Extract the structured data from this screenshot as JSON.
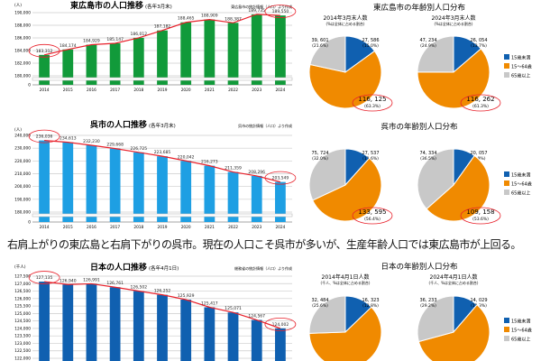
{
  "caption": "右肩上がりの東広島と右肩下がりの呉市。現在の人口こそ呉市が多いが、生産年齢人口では東広島市が上回る。",
  "colors": {
    "green": "#119a3a",
    "blue_bar": "#1e9fe3",
    "navy_bar": "#1060b0",
    "line": "#e8202a",
    "pie_blue": "#1060b0",
    "pie_orange": "#f08a00",
    "pie_gray": "#c8c8c8",
    "highlight": "#e8202a"
  },
  "legend": [
    "15歳未満",
    "15～64歳",
    "65歳以上"
  ],
  "chart_data": [
    {
      "type": "bar",
      "title": "東広島市の人口推移",
      "subtitle": "(各年3月末)",
      "source": "東広島市の統計情報（人口）より作成",
      "unit": "(人)",
      "categories": [
        "2014",
        "2015",
        "2016",
        "2017",
        "2018",
        "2019",
        "2020",
        "2021",
        "2022",
        "2023",
        "2024"
      ],
      "values": [
        183312,
        184174,
        184929,
        185147,
        186012,
        187182,
        188465,
        188909,
        188387,
        189735,
        189550
      ],
      "labels": [
        "183,312",
        "184,174",
        "184,929",
        "185,147",
        "186,012",
        "187,182",
        "188,465",
        "188,909",
        "188,387",
        "189,735",
        "189,550"
      ],
      "ylim": [
        180000,
        190000
      ],
      "yticks": [
        "190,000",
        "188,000",
        "186,000",
        "184,000",
        "182,000",
        "180,000"
      ],
      "ytick_values": [
        190000,
        188000,
        186000,
        184000,
        182000,
        180000
      ],
      "zero_label": "0",
      "axis_break": true,
      "highlighted": [
        0,
        10
      ]
    },
    {
      "type": "bar",
      "title": "呉市の人口推移",
      "subtitle": "(各年3月末)",
      "source": "呉市の統計情報（人口）より作成",
      "unit": "(人)",
      "categories": [
        "2014",
        "2015",
        "2016",
        "2017",
        "2018",
        "2019",
        "2020",
        "2021",
        "2022",
        "2023",
        "2024"
      ],
      "values": [
        236036,
        234613,
        232230,
        229668,
        226725,
        223685,
        220042,
        216273,
        211359,
        208296,
        203549
      ],
      "labels": [
        "236,036",
        "234,613",
        "232,230",
        "229,668",
        "226,725",
        "223,685",
        "220,042",
        "216,273",
        "211,359",
        "208,296",
        "203,549"
      ],
      "ylim": [
        180000,
        240000
      ],
      "yticks": [
        "240,000",
        "230,000",
        "220,000",
        "210,000",
        "200,000",
        "190,000",
        "180,000"
      ],
      "ytick_values": [
        240000,
        230000,
        220000,
        210000,
        200000,
        190000,
        180000
      ],
      "zero_label": "0",
      "axis_break": true,
      "highlighted": [
        0,
        10
      ]
    },
    {
      "type": "bar",
      "title": "日本の人口推移",
      "subtitle": "(各年4月1日)",
      "source": "総務省の統計情報（人口）より作成",
      "unit": "(千人)",
      "values": [
        127135,
        126940,
        126991,
        126761,
        126502,
        126252,
        125929,
        125417,
        125071,
        124567,
        124002
      ],
      "labels": [
        "127,135",
        "126,940",
        "126,991",
        "126,761",
        "126,502",
        "126,252",
        "125,929",
        "125,417",
        "125,071",
        "124,567",
        "124,002"
      ],
      "ylim": [
        122000,
        127500
      ],
      "yticks": [
        "127,500",
        "127,000",
        "126,500",
        "126,000",
        "125,500",
        "125,000",
        "124,500",
        "124,000",
        "123,500",
        "123,000",
        "122,500",
        "122,000"
      ],
      "ytick_values": [
        127500,
        127000,
        126500,
        126000,
        125500,
        125000,
        124500,
        124000,
        123500,
        123000,
        122500,
        122000
      ],
      "highlighted": [
        0,
        10
      ]
    },
    {
      "type": "pie",
      "group_title": "東広島市の年齢別人口分布",
      "title": "2014年3月末人数",
      "note": "(%は全体に占める割合)",
      "slices": [
        {
          "value": 27586,
          "label": "27, 586",
          "pct": "(15.0%)"
        },
        {
          "value": 116125,
          "label": "116, 125",
          "pct": "(63.3%)"
        },
        {
          "value": 39601,
          "label": "39, 601",
          "pct": "(21.6%)"
        }
      ]
    },
    {
      "type": "pie",
      "title": "2024年3月末人数",
      "note": "(%は全体に占める割合)",
      "slices": [
        {
          "value": 26054,
          "label": "26, 054",
          "pct": "(13.7%)"
        },
        {
          "value": 116262,
          "label": "116, 262",
          "pct": "(61.3%)"
        },
        {
          "value": 47234,
          "label": "47, 234",
          "pct": "(24.9%)"
        }
      ]
    },
    {
      "type": "pie",
      "group_title": "呉市の年齢別人口分布",
      "title": "",
      "note": "",
      "slices": [
        {
          "value": 27537,
          "label": "27, 537",
          "pct": "(11.6%)"
        },
        {
          "value": 133595,
          "label": "133, 595",
          "pct": "(56.4%)"
        },
        {
          "value": 75724,
          "label": "75, 724",
          "pct": "(32.0%)"
        }
      ]
    },
    {
      "type": "pie",
      "title": "",
      "note": "",
      "slices": [
        {
          "value": 20057,
          "label": "20, 057",
          "pct": "(9.9%)"
        },
        {
          "value": 109158,
          "label": "109, 158",
          "pct": "(53.6%)"
        },
        {
          "value": 74334,
          "label": "74, 334",
          "pct": "(36.5%)"
        }
      ]
    },
    {
      "type": "pie",
      "group_title": "日本の年齢別人口分布",
      "title": "2014年4月1日人数",
      "note": "(千人、%は全体に占める割合)",
      "slices": [
        {
          "value": 16323,
          "label": "16, 323",
          "pct": "(12.8%)"
        },
        {
          "value": 78328,
          "label": "",
          "pct": ""
        },
        {
          "value": 32484,
          "label": "32, 484",
          "pct": "(25.6%)"
        }
      ]
    },
    {
      "type": "pie",
      "title": "2024年4月1日人数",
      "note": "(千人、%は全体に占める割合)",
      "slices": [
        {
          "value": 14029,
          "label": "14, 029",
          "pct": "(11.3%)"
        },
        {
          "value": 73740,
          "label": "",
          "pct": ""
        },
        {
          "value": 36233,
          "label": "36, 233",
          "pct": "(29.2%)"
        }
      ]
    }
  ]
}
